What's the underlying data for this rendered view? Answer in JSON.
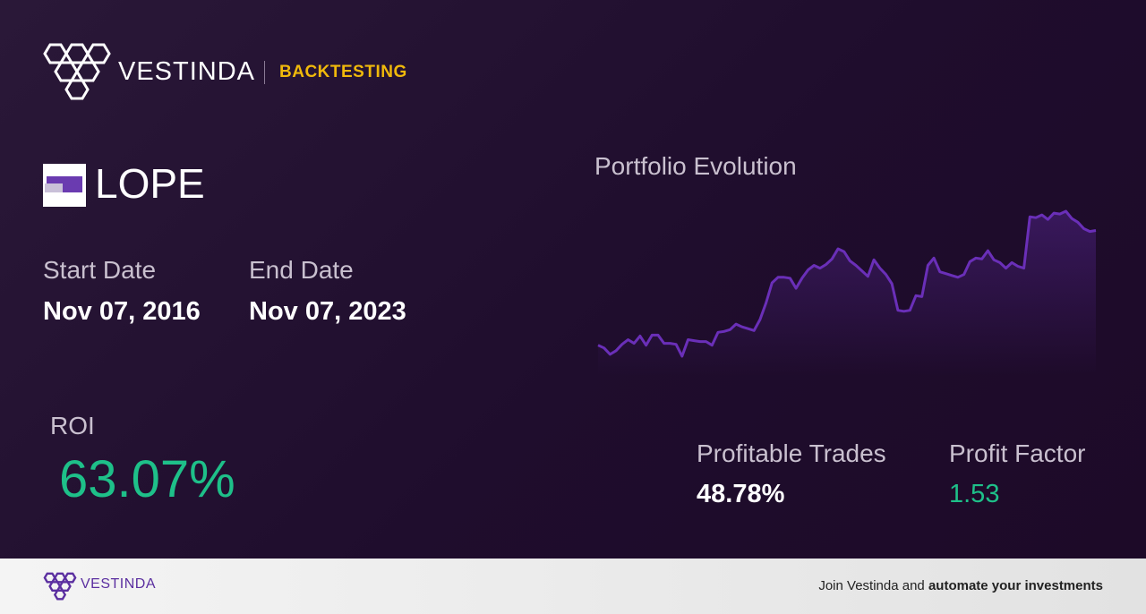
{
  "header": {
    "brand": "VESTINDA",
    "section": "BACKTESTING"
  },
  "ticker": "LOPE",
  "start_date": {
    "label": "Start Date",
    "value": "Nov 07, 2016"
  },
  "end_date": {
    "label": "End Date",
    "value": "Nov 07, 2023"
  },
  "roi": {
    "label": "ROI",
    "value": "63.07%"
  },
  "profitable_trades": {
    "label": "Profitable Trades",
    "value": "48.78%"
  },
  "profit_factor": {
    "label": "Profit Factor",
    "value": "1.53"
  },
  "footer": {
    "brand": "VESTINDA",
    "text": "Join Vestinda and",
    "bold": "automate your investments"
  },
  "chart_data": {
    "type": "line",
    "title": "Portfolio Evolution",
    "color": "#6a2fb8",
    "values": [
      16,
      13,
      6,
      10,
      17,
      22,
      18,
      26,
      16,
      27,
      27,
      18,
      18,
      17,
      4,
      22,
      21,
      20,
      20,
      16,
      30,
      31,
      33,
      39,
      36,
      34,
      32,
      44,
      62,
      84,
      90,
      90,
      89,
      78,
      89,
      98,
      103,
      100,
      104,
      110,
      121,
      118,
      108,
      103,
      97,
      91,
      109,
      100,
      93,
      83,
      54,
      53,
      54,
      70,
      69,
      103,
      111,
      96,
      94,
      92,
      90,
      93,
      107,
      111,
      110,
      119,
      109,
      106,
      100,
      106,
      102,
      100,
      156,
      155,
      158,
      153,
      160,
      159,
      162,
      154,
      150,
      143,
      140,
      141
    ]
  }
}
